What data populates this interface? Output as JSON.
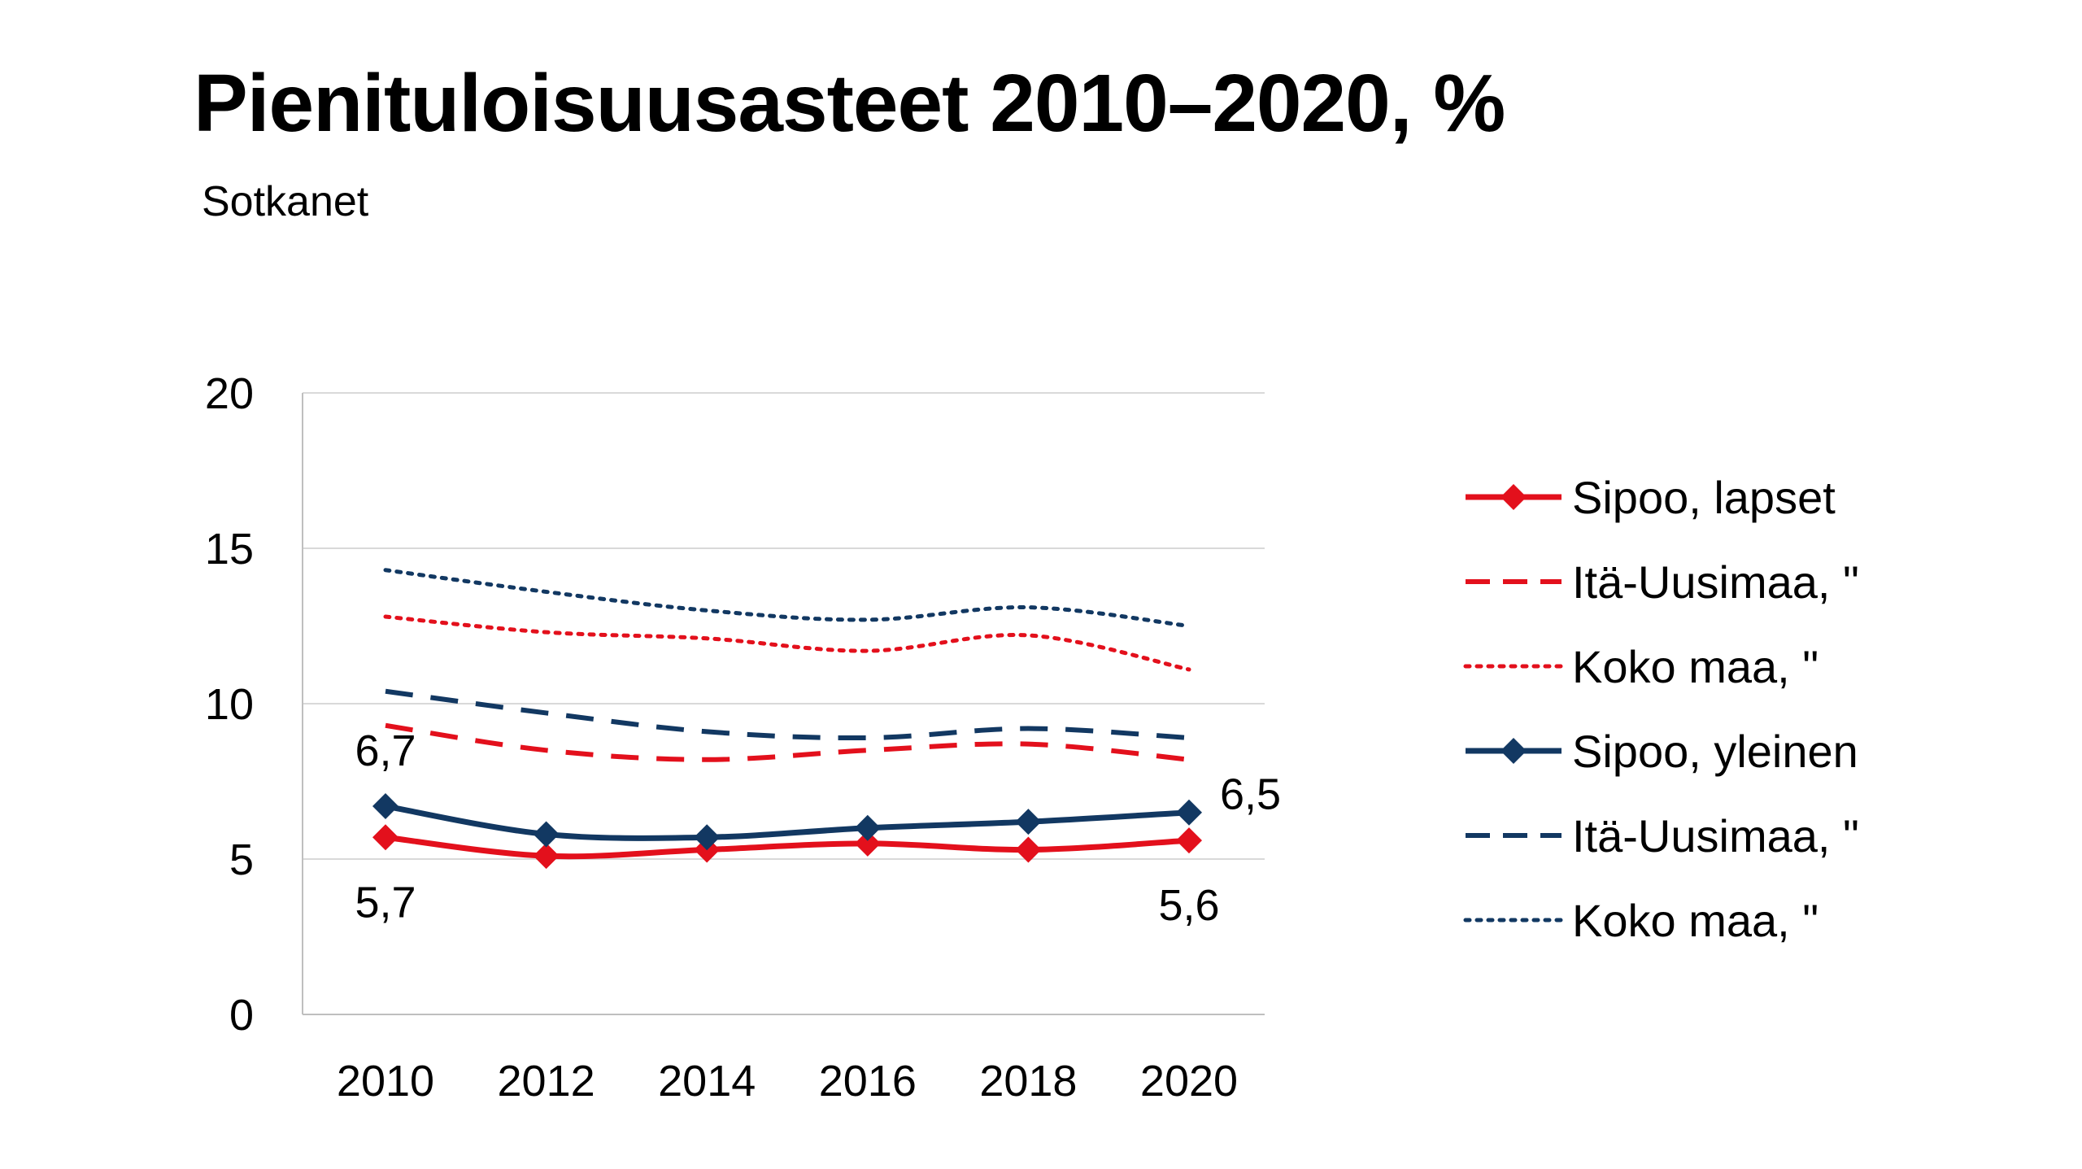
{
  "header": {
    "title": "Pienituloisuusasteet 2010–2020, %",
    "subtitle": "Sotkanet"
  },
  "colors": {
    "red": "#e3101c",
    "navy": "#123862",
    "grid": "#d9d9d9",
    "axis": "#bfbfbf"
  },
  "chart_data": {
    "type": "line",
    "title": "Pienituloisuusasteet 2010–2020, %",
    "subtitle": "Sotkanet",
    "xlabel": "",
    "ylabel": "",
    "x": [
      2010,
      2012,
      2014,
      2016,
      2018,
      2020
    ],
    "ylim": [
      0,
      20
    ],
    "yticks": [
      0,
      5,
      10,
      15,
      20
    ],
    "grid": true,
    "legend_position": "right",
    "series": [
      {
        "name": "Sipoo, lapset",
        "color": "#e3101c",
        "style": "solid",
        "markers": true,
        "values": [
          5.7,
          5.1,
          5.3,
          5.5,
          5.3,
          5.6
        ]
      },
      {
        "name": "Itä-Uusimaa, \"",
        "color": "#e3101c",
        "style": "dashed",
        "markers": false,
        "values": [
          9.3,
          8.5,
          8.2,
          8.5,
          8.7,
          8.2
        ]
      },
      {
        "name": "Koko maa, \"",
        "color": "#e3101c",
        "style": "dotted",
        "markers": false,
        "values": [
          12.8,
          12.3,
          12.1,
          11.7,
          12.2,
          11.1
        ]
      },
      {
        "name": "Sipoo, yleinen",
        "color": "#123862",
        "style": "solid",
        "markers": true,
        "values": [
          6.7,
          5.8,
          5.7,
          6.0,
          6.2,
          6.5
        ]
      },
      {
        "name": "Itä-Uusimaa, \"",
        "color": "#123862",
        "style": "dashed",
        "markers": false,
        "values": [
          10.4,
          9.7,
          9.1,
          8.9,
          9.2,
          8.9
        ]
      },
      {
        "name": "Koko maa, \"",
        "color": "#123862",
        "style": "dotted",
        "markers": false,
        "values": [
          14.3,
          13.6,
          13.0,
          12.7,
          13.1,
          12.5
        ]
      }
    ],
    "data_labels": [
      {
        "series": 3,
        "index": 0,
        "text": "6,7",
        "pos": "above"
      },
      {
        "series": 0,
        "index": 0,
        "text": "5,7",
        "pos": "below"
      },
      {
        "series": 3,
        "index": 5,
        "text": "6,5",
        "pos": "right"
      },
      {
        "series": 0,
        "index": 5,
        "text": "5,6",
        "pos": "below"
      }
    ]
  }
}
